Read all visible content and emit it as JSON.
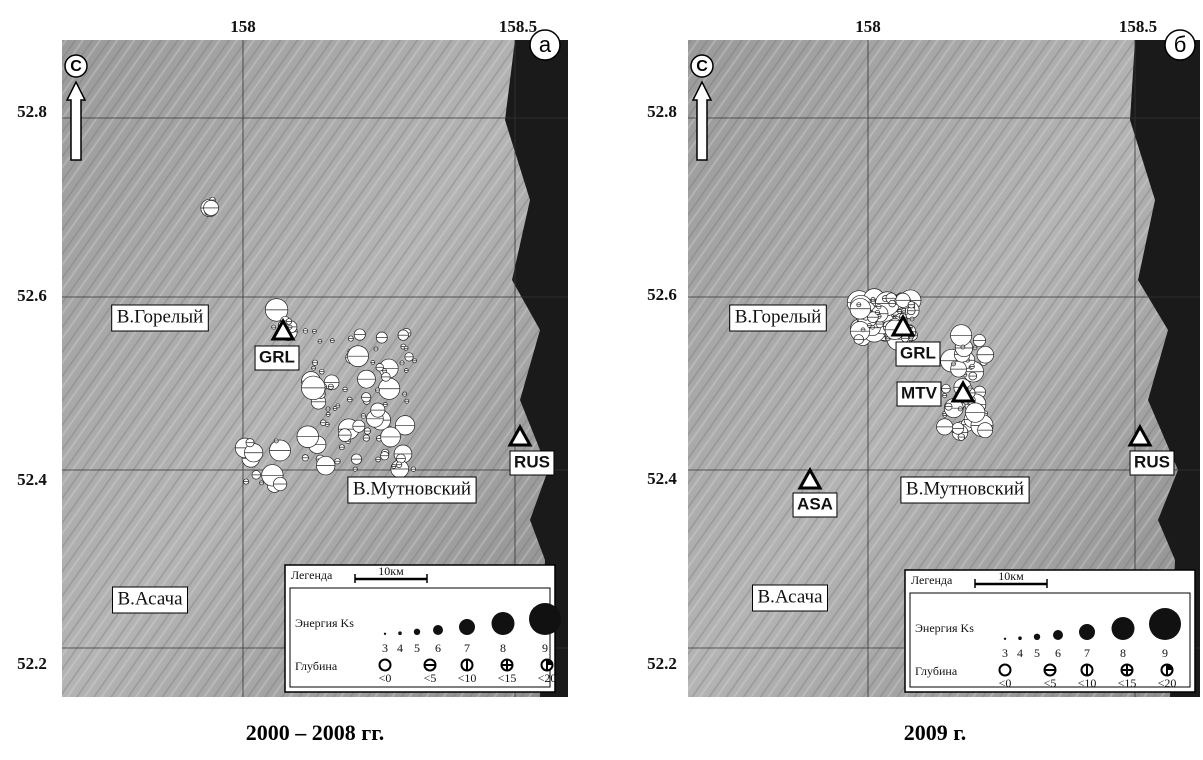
{
  "panels": [
    {
      "lon_ticks": [
        158,
        158.5
      ],
      "lat_ticks": [
        52.8,
        52.6,
        52.4,
        52.2
      ],
      "north": "С",
      "letter": "а",
      "places": [
        "В.Горелый",
        "В.Мутновский",
        "В.Асача"
      ],
      "stations": [
        "GRL",
        "RUS"
      ],
      "legend": {
        "title": "Легенда",
        "scale": "10км",
        "energy_label": "Энергия Ks",
        "energy_classes": [
          3,
          4,
          5,
          6,
          7,
          8,
          9
        ],
        "depth_label": "Глубина",
        "depth_classes": [
          "<0",
          "<5",
          "<10",
          "<15",
          "<20"
        ]
      },
      "caption": "2000 – 2008 гг."
    },
    {
      "lon_ticks": [
        158,
        158.5
      ],
      "lat_ticks": [
        52.8,
        52.6,
        52.4,
        52.2
      ],
      "north": "С",
      "letter": "б",
      "places": [
        "В.Горелый",
        "В.Мутновский",
        "В.Асача"
      ],
      "stations": [
        "GRL",
        "MTV",
        "RUS",
        "ASA"
      ],
      "legend": {
        "title": "Легенда",
        "scale": "10км",
        "energy_label": "Энергия Ks",
        "energy_classes": [
          3,
          4,
          5,
          6,
          7,
          8,
          9
        ],
        "depth_label": "Глубина",
        "depth_classes": [
          "<0",
          "<5",
          "<10",
          "<15",
          "<20"
        ]
      },
      "caption": "2009 г."
    }
  ]
}
